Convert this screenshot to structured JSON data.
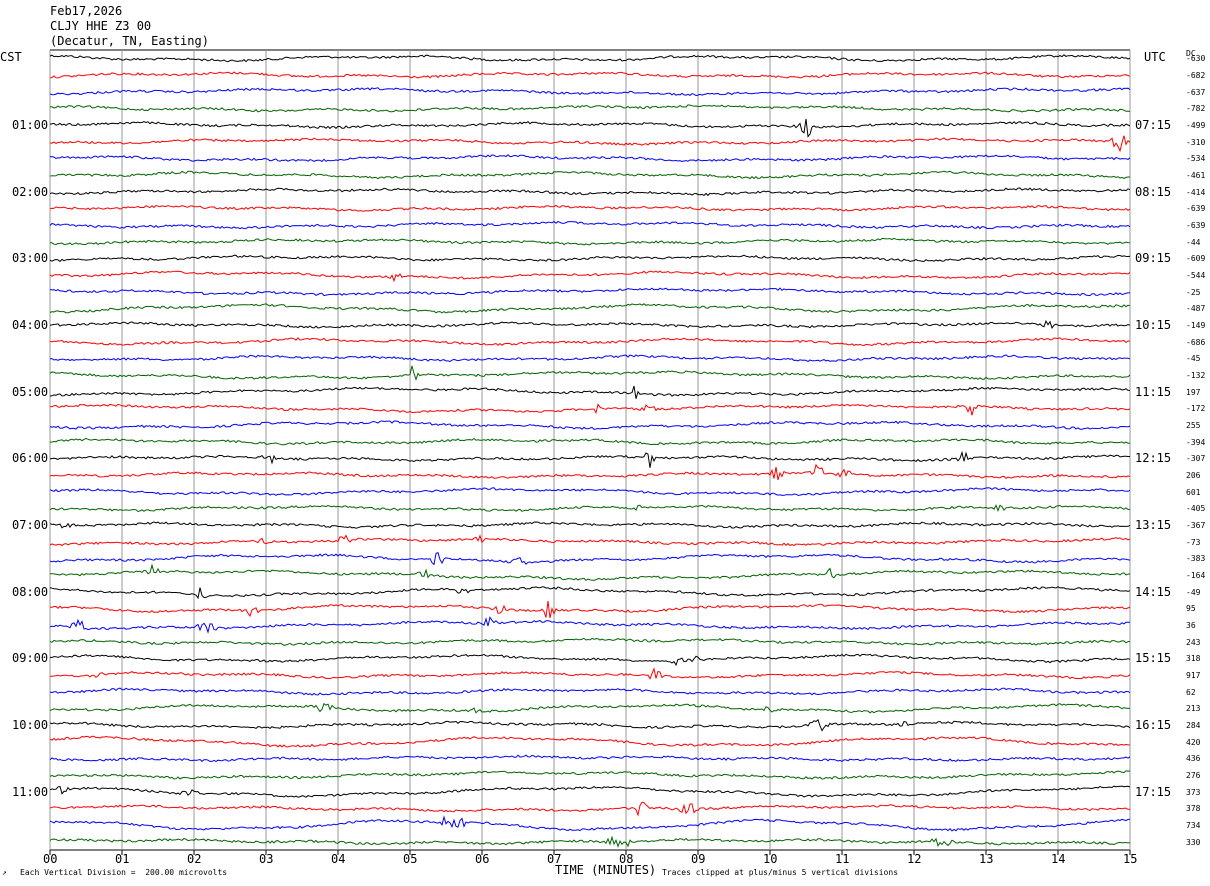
{
  "header": {
    "date": "Feb17,2026",
    "station": "CLJY HHE Z3 00",
    "location": "(Decatur, TN, Easting)"
  },
  "chart_data": {
    "type": "line",
    "left_axis_label": "CST",
    "right_axis_label": "UTC",
    "dc_label": "DC",
    "left_hours": [
      "01:00",
      "02:00",
      "03:00",
      "04:00",
      "05:00",
      "06:00",
      "07:00",
      "08:00",
      "09:00",
      "10:00",
      "11:00"
    ],
    "right_hours": [
      "07:15",
      "08:15",
      "09:15",
      "10:15",
      "11:15",
      "12:15",
      "13:15",
      "14:15",
      "15:15",
      "16:15",
      "17:15"
    ],
    "x_ticks": [
      "00",
      "01",
      "02",
      "03",
      "04",
      "05",
      "06",
      "07",
      "08",
      "09",
      "10",
      "11",
      "12",
      "13",
      "14",
      "15"
    ],
    "xlabel": "TIME (MINUTES)",
    "xlim": [
      0,
      15
    ],
    "trace_colors": [
      "#000000",
      "#ff0000",
      "#0000ff",
      "#006400"
    ],
    "dc_offsets": [
      "-630",
      "-682",
      "-637",
      "-782",
      "-499",
      "-310",
      "-534",
      "-461",
      "-414",
      "-639",
      "-639",
      "-44",
      "-609",
      "-544",
      "-25",
      "-487",
      "-149",
      "-686",
      "-45",
      "-132",
      "197",
      "-172",
      "255",
      "-394",
      "-307",
      "206",
      "601",
      "-405",
      "-367",
      "-73",
      "-383",
      "-164",
      "-49",
      "95",
      "36",
      "243",
      "318",
      "917",
      "62",
      "213",
      "284",
      "420",
      "436",
      "276",
      "373",
      "378",
      "734",
      "330"
    ],
    "footer": {
      "scale": "Each Vertical Division =  200.00 microvolts",
      "clip": "Traces clipped at plus/minus 5 vertical divisions"
    }
  }
}
